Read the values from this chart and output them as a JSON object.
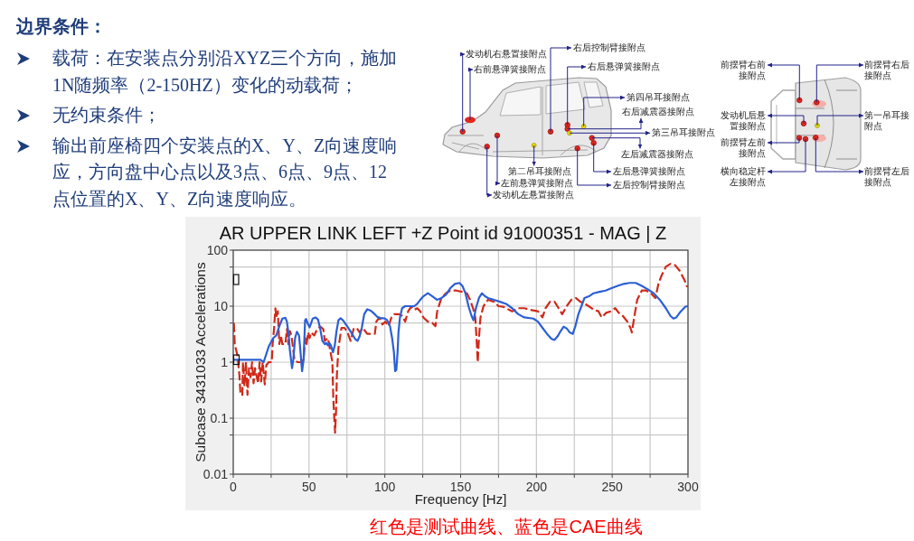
{
  "chart_data": {
    "type": "line",
    "title": "AR UPPER LINK LEFT +Z Point id 91000351 - MAG | Z",
    "xlabel": "Frequency [Hz]",
    "ylabel": "Subcase 3431033 Accelerations",
    "xlim": [
      0,
      300
    ],
    "ylim": [
      0.01,
      100
    ],
    "log": true,
    "grid": true,
    "xticks": [
      0,
      {
        "value": 25,
        "label": null
      },
      50,
      {
        "value": 75,
        "label": null
      },
      100,
      {
        "value": 125,
        "label": null
      },
      150,
      {
        "value": 175,
        "label": null
      },
      200,
      {
        "value": 225,
        "label": null
      },
      250,
      {
        "value": 275,
        "label": null
      },
      300
    ],
    "yticks": [
      0.01,
      {
        "value": 0.05,
        "label": null
      },
      0.1,
      {
        "value": 0.5,
        "label": null
      },
      1,
      {
        "value": 5,
        "label": null
      },
      10,
      {
        "value": 50,
        "label": null
      },
      100
    ],
    "series": [
      {
        "color": "#d02a1a",
        "line_style": "dashed",
        "x": [
          0.4,
          1,
          2,
          2.8,
          4,
          4.8,
          6,
          6.4,
          7.4,
          8.4,
          9.4,
          10.4,
          11.4,
          12.4,
          13.4,
          14.4,
          16.4,
          17.4,
          18.4,
          19.4,
          20.8,
          21.8,
          23.4,
          25.4,
          26,
          26.8,
          27.8,
          28.4,
          29.4,
          30.4,
          31.4,
          32.4,
          34.4,
          35.4,
          36.4,
          37.4,
          38.4,
          40.4,
          42.4,
          44.4,
          46.4,
          47.4,
          48.4,
          49.4,
          50.4,
          51.4,
          53.4,
          55.4,
          57.4,
          59.4,
          60.4,
          62.4,
          64,
          65.4,
          66,
          66.8,
          67.2,
          67.8,
          68.4,
          69.4,
          70.4,
          71.4,
          73.4,
          75.4,
          77.4,
          79.4,
          81.4,
          83.4,
          85.4,
          88.4,
          93.4,
          94.4,
          96.4,
          98.4,
          100.4,
          102.4,
          104.4,
          106.4,
          109.4,
          111.4,
          113.4,
          115.4,
          117.4,
          119.4,
          121.4,
          123.4,
          125.4,
          128.4,
          131.4,
          133.4,
          134.5,
          137.3,
          140.3,
          143.2,
          147.2,
          151.2,
          154.2,
          156.2,
          158.2,
          159.7,
          160.7,
          161.3,
          162.1,
          163.1,
          165.1,
          168.1,
          172.1,
          175,
          178,
          182,
          184,
          188,
          192,
          196,
          201,
          204,
          206,
          209,
          212,
          214,
          217,
          220,
          223,
          226,
          229,
          232,
          235,
          238,
          241,
          243,
          246,
          249,
          252,
          255,
          257,
          260,
          262,
          263,
          264.5,
          266.5,
          269.5,
          272.5,
          275.5,
          278.5,
          280.5,
          282.5,
          285.5,
          288.5,
          291.5,
          294.5,
          297.5,
          299.5
        ],
        "values": [
          5.0,
          2.1,
          1.6,
          1.3,
          0.61,
          0.26,
          0.26,
          1.0,
          0.37,
          1.0,
          0.26,
          0.78,
          0.54,
          1.0,
          0.42,
          0.78,
          0.42,
          1.0,
          0.45,
          1.0,
          0.4,
          0.88,
          1.0,
          1.0,
          2.1,
          3.6,
          9.2,
          6.3,
          8.1,
          2.1,
          3.0,
          2.1,
          2.1,
          3.9,
          2.1,
          3.6,
          3.0,
          1.1,
          1.0,
          1.0,
          1.1,
          2.7,
          2.1,
          3.4,
          2.7,
          3.4,
          3.0,
          3.9,
          4.3,
          3.9,
          2.4,
          2.7,
          1.6,
          1.0,
          0.23,
          0.085,
          0.055,
          0.13,
          0.61,
          1.8,
          2.7,
          4.1,
          4.1,
          3.4,
          2.4,
          3.9,
          4.1,
          3.4,
          4.1,
          3.2,
          3.2,
          5.3,
          6.3,
          4.7,
          5.3,
          4.4,
          6.3,
          7.2,
          7.2,
          6.7,
          5.3,
          8.1,
          9.8,
          8.6,
          9.2,
          8.1,
          6.3,
          5.3,
          5.0,
          4.4,
          8.0,
          14,
          17,
          19,
          19,
          18,
          17,
          13,
          9.2,
          6.3,
          2.1,
          1.0,
          2.7,
          6.3,
          10,
          13,
          12,
          10,
          9.8,
          8.6,
          8.1,
          9.2,
          9.2,
          8.6,
          8.1,
          6.3,
          9.2,
          12,
          12,
          9.8,
          7.2,
          10,
          13,
          14,
          12,
          11,
          9.8,
          8.6,
          8.1,
          6.3,
          7.6,
          8.1,
          9.2,
          7.2,
          6.7,
          5.3,
          4.1,
          3.4,
          6.3,
          13,
          19,
          19,
          17,
          14,
          25,
          35,
          51,
          57,
          54,
          43,
          30,
          22
        ]
      },
      {
        "color": "#2c5fd5",
        "line_style": "solid",
        "x": [
          0,
          18,
          20,
          21,
          23.4,
          26.4,
          28.4,
          30.4,
          32.4,
          34.4,
          35.4,
          36.4,
          37.4,
          38.8,
          39.6,
          40.8,
          42,
          43.4,
          44.4,
          45.4,
          46.4,
          47.4,
          48,
          49.4,
          50.4,
          51.4,
          52.4,
          54.4,
          56,
          57.4,
          58.8,
          60.4,
          61.4,
          62.4,
          63.4,
          64.4,
          65.8,
          67,
          68,
          69.4,
          70.8,
          72.4,
          74.4,
          76.4,
          78.4,
          80.4,
          82,
          83.4,
          84.8,
          86.4,
          88.4,
          90.4,
          92.4,
          94.4,
          96.4,
          99.4,
          101.4,
          103.4,
          104.8,
          106,
          106.8,
          107.6,
          108.4,
          109,
          110,
          111.4,
          113.4,
          116.4,
          119.4,
          121.4,
          123.4,
          125.4,
          128.4,
          131.4,
          134.4,
          137.4,
          140.3,
          143.2,
          146.2,
          149.2,
          151.2,
          153.2,
          155.2,
          157.2,
          158.5,
          160.1,
          162.1,
          164.1,
          166.1,
          168.1,
          172.1,
          176,
          180,
          184,
          188,
          192,
          198,
          201,
          204,
          207,
          210,
          212,
          214,
          216,
          218,
          220,
          222,
          224,
          225.7,
          227.7,
          229.7,
          231.7,
          234.7,
          237.7,
          241.6,
          245.6,
          249.6,
          253.6,
          257.6,
          261.5,
          265.5,
          269.5,
          273.5,
          277.4,
          281.4,
          285.4,
          288.4,
          290.4,
          292.3,
          295.3,
          298.3,
          300
        ],
        "values": [
          1.1,
          1.1,
          1.0,
          1.2,
          1.9,
          2.7,
          3.0,
          4.4,
          6.0,
          6.2,
          5.3,
          3.4,
          1.6,
          0.78,
          1.1,
          2.7,
          3.5,
          3.0,
          1.5,
          0.69,
          1.1,
          5.6,
          5.9,
          4.7,
          4.2,
          5.0,
          6.0,
          6.3,
          5.7,
          3.9,
          2.4,
          2.1,
          2.2,
          2.0,
          2.2,
          2.0,
          1.5,
          2.0,
          3.4,
          5.6,
          6.1,
          5.6,
          4.7,
          3.9,
          3.2,
          2.6,
          2.4,
          2.9,
          4.1,
          7.2,
          8.8,
          8.4,
          7.6,
          6.7,
          6.1,
          6.1,
          5.7,
          4.4,
          2.7,
          1.5,
          0.69,
          0.73,
          1.5,
          3.4,
          6.3,
          9.2,
          10,
          10,
          10,
          11,
          13,
          15,
          17,
          15,
          13,
          14,
          16,
          21,
          25,
          26,
          23,
          17,
          10,
          6.7,
          5.6,
          9.2,
          14,
          17,
          15,
          14,
          13,
          12,
          11,
          9.2,
          7.2,
          6.3,
          6.0,
          5.3,
          4.1,
          3.2,
          2.6,
          2.5,
          2.9,
          3.6,
          4.3,
          4.0,
          3.4,
          3.2,
          4.4,
          7.2,
          10,
          14,
          15,
          17,
          18,
          19,
          21,
          23,
          25,
          26,
          26,
          23,
          20,
          17,
          13,
          9.2,
          6.7,
          6.0,
          6.3,
          8.1,
          9.8,
          10
        ]
      }
    ],
    "annotations": [
      "边界条件：",
      "载荷：在安装点分别沿XYZ三个方向，施加1N随频率（2-150HZ）变化的动载荷；",
      "无约束条件；",
      "输出前座椅四个安装点的X、Y、Z向速度响应，方向盘中心点以及3点、6点、9点、12点位置的X、Y、Z向速度响应。",
      "发动机右悬置接附点",
      "右前悬弹簧接附点",
      "右后控制臂接附点",
      "右后悬弹簧接附点",
      "第四吊耳接附点",
      "右后减震器接附点",
      "第三吊耳接附点",
      "左后减震器接附点",
      "第二吊耳接附点",
      "左后悬弹簧接附点",
      "左前悬弹簧接附点",
      "左后控制臂接附点",
      "发动机左悬置接附点",
      "前摆臂右前接附点",
      "前摆臂右后接附点",
      "发动机后悬置接附点",
      "第一吊耳接附点",
      "前摆臂左前接附点",
      "横向稳定杆左接附点",
      "前摆臂左后接附点",
      "红色是测试曲线、蓝色是CAE曲线"
    ]
  }
}
